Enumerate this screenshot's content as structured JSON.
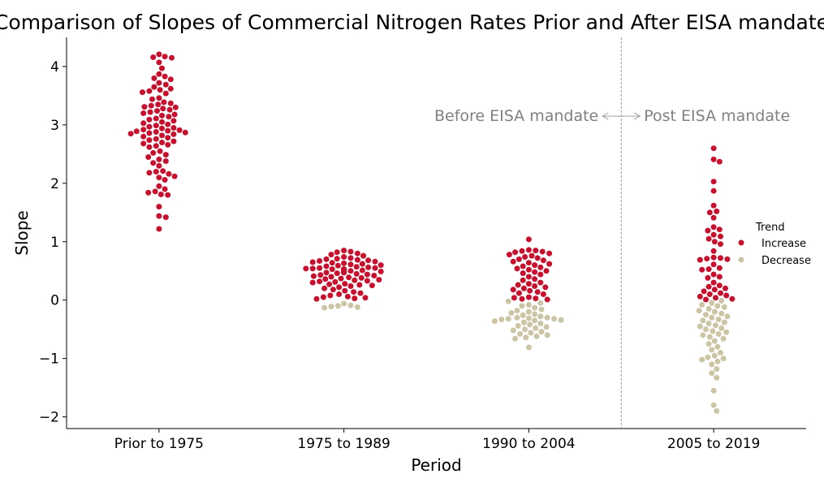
{
  "chart_data": {
    "type": "swarm",
    "title": "Comparison of Slopes of Commercial Nitrogen Rates Prior and After EISA mandate",
    "xlabel": "Period",
    "ylabel": "Slope",
    "categories": [
      "Prior to 1975",
      "1975 to 1989",
      "1990 to 2004",
      "2005 to 2019"
    ],
    "ylim": [
      -2.2,
      4.5
    ],
    "yticks": [
      -2,
      -1,
      0,
      1,
      2,
      3,
      4
    ],
    "ytick_labels": [
      "−2",
      "−1",
      "0",
      "1",
      "2",
      "3",
      "4"
    ],
    "legend": {
      "title": "Trend",
      "entries": [
        "Increase",
        "Decrease"
      ],
      "placement": "center-right"
    },
    "colors": {
      "Increase": "#C8102E",
      "Decrease": "#CCC5A5"
    },
    "divider": {
      "between": [
        "1990 to 2004",
        "2005 to 2019"
      ],
      "style": "dashed"
    },
    "annotations": {
      "left": "Before EISA mandate",
      "right": "Post EISA mandate"
    },
    "series": [
      {
        "name": "Increase",
        "values": [
          [
            4.21,
            4.17,
            4.16,
            4.15,
            4.07,
            3.97,
            3.87,
            3.83,
            3.8,
            3.78,
            3.72,
            3.69,
            3.65,
            3.62,
            3.6,
            3.58,
            3.56,
            3.54,
            3.46,
            3.44,
            3.39,
            3.37,
            3.35,
            3.33,
            3.31,
            3.3,
            3.28,
            3.26,
            3.24,
            3.22,
            3.2,
            3.18,
            3.16,
            3.14,
            3.11,
            3.09,
            3.07,
            3.05,
            3.03,
            3.01,
            2.99,
            2.97,
            2.95,
            2.94,
            2.92,
            2.91,
            2.9,
            2.89,
            2.88,
            2.87,
            2.86,
            2.85,
            2.84,
            2.82,
            2.8,
            2.78,
            2.76,
            2.74,
            2.72,
            2.7,
            2.68,
            2.66,
            2.64,
            2.62,
            2.55,
            2.52,
            2.49,
            2.45,
            2.41,
            2.38,
            2.35,
            2.3,
            2.21,
            2.2,
            2.18,
            2.16,
            2.12,
            2.1,
            2.06,
            1.95,
            1.9,
            1.86,
            1.84,
            1.81,
            1.8,
            1.6,
            1.44,
            1.42,
            1.22
          ],
          [
            0.85,
            0.83,
            0.82,
            0.8,
            0.78,
            0.76,
            0.74,
            0.72,
            0.71,
            0.7,
            0.69,
            0.68,
            0.67,
            0.66,
            0.65,
            0.64,
            0.63,
            0.62,
            0.61,
            0.6,
            0.59,
            0.58,
            0.57,
            0.56,
            0.55,
            0.55,
            0.54,
            0.54,
            0.53,
            0.53,
            0.53,
            0.52,
            0.52,
            0.52,
            0.51,
            0.51,
            0.5,
            0.5,
            0.49,
            0.49,
            0.48,
            0.48,
            0.47,
            0.47,
            0.46,
            0.45,
            0.44,
            0.43,
            0.42,
            0.41,
            0.4,
            0.39,
            0.38,
            0.37,
            0.36,
            0.35,
            0.34,
            0.33,
            0.32,
            0.31,
            0.3,
            0.28,
            0.27,
            0.26,
            0.25,
            0.24,
            0.22,
            0.2,
            0.18,
            0.16,
            0.14,
            0.12,
            0.1,
            0.08,
            0.06,
            0.05,
            0.04,
            0.03,
            0.02
          ],
          [
            1.04,
            0.86,
            0.85,
            0.84,
            0.83,
            0.82,
            0.8,
            0.78,
            0.76,
            0.74,
            0.72,
            0.7,
            0.68,
            0.66,
            0.64,
            0.62,
            0.6,
            0.58,
            0.56,
            0.54,
            0.52,
            0.5,
            0.48,
            0.46,
            0.44,
            0.4,
            0.36,
            0.34,
            0.3,
            0.28,
            0.26,
            0.24,
            0.22,
            0.2,
            0.18,
            0.16,
            0.14,
            0.12,
            0.1,
            0.05,
            0.04,
            0.03,
            0.02,
            0.01
          ],
          [
            2.6,
            2.41,
            2.37,
            2.03,
            1.87,
            1.62,
            1.52,
            1.5,
            1.41,
            1.25,
            1.21,
            1.19,
            1.12,
            1.09,
            1.05,
            1.0,
            0.96,
            0.84,
            0.73,
            0.72,
            0.71,
            0.7,
            0.69,
            0.61,
            0.55,
            0.53,
            0.52,
            0.44,
            0.4,
            0.38,
            0.3,
            0.25,
            0.23,
            0.2,
            0.18,
            0.15,
            0.12,
            0.1,
            0.08,
            0.06,
            0.04,
            0.02,
            0.01
          ]
        ]
      },
      {
        "name": "Decrease",
        "values": [
          [],
          [
            -0.06,
            -0.09,
            -0.1,
            -0.11,
            -0.12,
            -0.13
          ],
          [
            -0.02,
            -0.05,
            -0.08,
            -0.1,
            -0.13,
            -0.16,
            -0.18,
            -0.2,
            -0.22,
            -0.24,
            -0.26,
            -0.28,
            -0.3,
            -0.3,
            -0.31,
            -0.32,
            -0.32,
            -0.33,
            -0.34,
            -0.35,
            -0.36,
            -0.38,
            -0.4,
            -0.42,
            -0.44,
            -0.46,
            -0.48,
            -0.5,
            -0.52,
            -0.54,
            -0.56,
            -0.58,
            -0.6,
            -0.62,
            -0.64,
            -0.66,
            -0.81
          ],
          [
            -0.01,
            -0.05,
            -0.08,
            -0.1,
            -0.12,
            -0.15,
            -0.18,
            -0.2,
            -0.23,
            -0.25,
            -0.28,
            -0.3,
            -0.33,
            -0.35,
            -0.38,
            -0.4,
            -0.43,
            -0.45,
            -0.48,
            -0.5,
            -0.53,
            -0.55,
            -0.58,
            -0.6,
            -0.63,
            -0.66,
            -0.7,
            -0.75,
            -0.8,
            -0.85,
            -0.9,
            -0.95,
            -0.98,
            -1.0,
            -1.02,
            -1.05,
            -1.1,
            -1.18,
            -1.25,
            -1.33,
            -1.55,
            -1.8,
            -1.9
          ]
        ]
      }
    ]
  }
}
